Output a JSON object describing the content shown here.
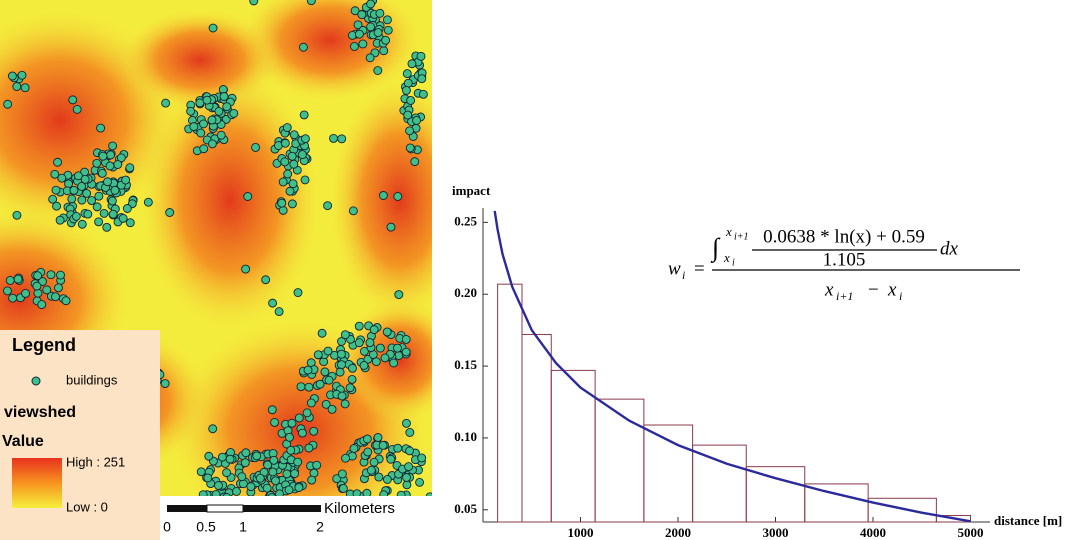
{
  "map": {
    "legend": {
      "title": "Legend",
      "buildings": "buildings",
      "layer": "viewshed",
      "field": "Value",
      "high": "High : 251",
      "low": "Low : 0"
    },
    "scale": {
      "labels": [
        "0",
        "0.5",
        "1",
        "2"
      ],
      "unit": "Kilometers"
    }
  },
  "equation": {
    "lhs": "w",
    "lhs_sub": "i",
    "eq": "=",
    "integral": "∫",
    "upper": "x",
    "upper_sub": "i+1",
    "lower": "x",
    "lower_sub": "i",
    "numerator": "0.0638 * ln(x) + 0.59",
    "denominator": "1.105",
    "dx": "dx",
    "den_a": "x",
    "den_a_sub": "i+1",
    "den_minus": "−",
    "den_b": "x",
    "den_b_sub": "i"
  },
  "chart_data": {
    "type": "histogram",
    "ylabel": "impact",
    "xlabel": "distance [m]",
    "bins": [
      150,
      400,
      700,
      1150,
      1650,
      2150,
      2700,
      3300,
      3950,
      4650,
      5000
    ],
    "values": [
      0.207,
      0.172,
      0.147,
      0.127,
      0.109,
      0.095,
      0.08,
      0.068,
      0.058,
      0.046
    ],
    "color": "#8b3a4a",
    "curve": {
      "color": "#2b2a9c",
      "x": [
        120,
        150,
        200,
        300,
        500,
        750,
        1000,
        1500,
        2000,
        2500,
        3000,
        3500,
        4000,
        4500,
        5000
      ],
      "values": [
        0.258,
        0.245,
        0.228,
        0.205,
        0.175,
        0.152,
        0.135,
        0.112,
        0.095,
        0.082,
        0.072,
        0.063,
        0.055,
        0.048,
        0.042
      ]
    },
    "xlim": [
      0,
      5200
    ],
    "ylim": [
      0.0415,
      0.26
    ],
    "xticks": [
      1000,
      2000,
      3000,
      4000,
      5000
    ],
    "yticks": [
      0.05,
      {
        "value": 0.1,
        "label": "0.10"
      },
      0.15,
      {
        "value": 0.2,
        "label": "0.20"
      },
      0.25
    ]
  }
}
